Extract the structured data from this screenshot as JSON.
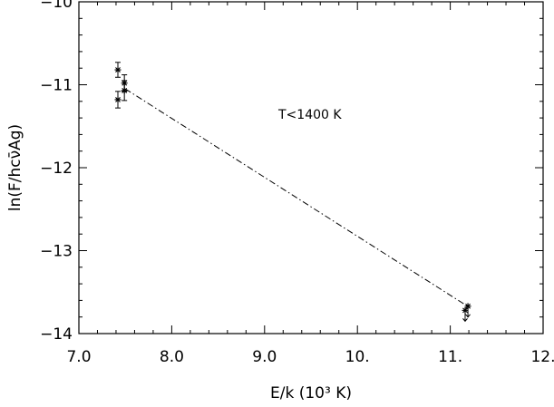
{
  "chart_data": {
    "type": "scatter",
    "title": "",
    "xlabel": "E/k (10³ K)",
    "ylabel": "ln(F/hcν̄Ag)",
    "xlim": [
      7.0,
      12.0
    ],
    "ylim": [
      -14.0,
      -10.0
    ],
    "xticks": [
      7.0,
      8.0,
      9.0,
      10.0,
      11.0,
      12.0
    ],
    "xtick_labels": [
      "7.0",
      "8.0",
      "9.0",
      "10.",
      "11.",
      "12."
    ],
    "yticks": [
      -14,
      -13,
      -12,
      -11,
      -10
    ],
    "ytick_labels": [
      "−14",
      "−13",
      "−12",
      "−11",
      "−10"
    ],
    "grid": false,
    "annotation": "T<1400 K",
    "points": [
      {
        "x": 7.42,
        "y": -10.82,
        "yerr": 0.09
      },
      {
        "x": 7.42,
        "y": -11.18,
        "yerr": 0.1
      },
      {
        "x": 7.49,
        "y": -10.98,
        "yerr": 0.1
      },
      {
        "x": 7.49,
        "y": -11.07,
        "yerr": 0.12
      },
      {
        "x": 11.16,
        "y": -13.72,
        "upper_limit": true
      },
      {
        "x": 11.19,
        "y": -13.67,
        "upper_limit": true
      }
    ],
    "fit_line": {
      "x": [
        7.5,
        11.2
      ],
      "y": [
        -11.05,
        -13.68
      ]
    }
  }
}
